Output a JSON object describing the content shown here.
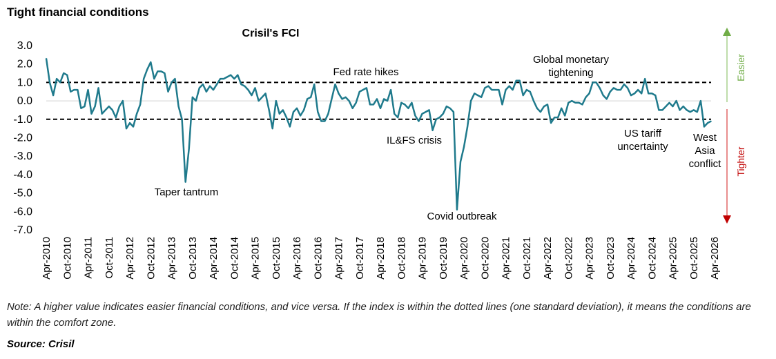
{
  "header": {
    "title": "Tight financial conditions"
  },
  "chart_data": {
    "type": "line",
    "title": "Crisil's FCI",
    "xlabel": "",
    "ylabel": "",
    "ylim": [
      -7.0,
      3.0
    ],
    "y_ticks": [
      "3.0",
      "2.0",
      "1.0",
      "0.0",
      "-1.0",
      "-2.0",
      "-3.0",
      "-4.0",
      "-5.0",
      "-6.0",
      "-7.0"
    ],
    "x_ticks": [
      "Apr-2010",
      "Oct-2010",
      "Apr-2011",
      "Oct-2011",
      "Apr-2012",
      "Oct-2012",
      "Apr-2013",
      "Oct-2013",
      "Apr-2014",
      "Oct-2014",
      "Apr-2015",
      "Oct-2015",
      "Apr-2016",
      "Oct-2016",
      "Apr-2017",
      "Oct-2017",
      "Apr-2018",
      "Oct-2018",
      "Apr-2019",
      "Oct-2019",
      "Apr-2020",
      "Oct-2020",
      "Apr-2021",
      "Oct-2021",
      "Apr-2022",
      "Oct-2022",
      "Apr-2023",
      "Oct-2023",
      "Apr-2024",
      "Oct-2024",
      "Apr-2025",
      "Oct-2025",
      "Apr-2026"
    ],
    "x_start": "Apr-2010",
    "reference_lines": [
      1.0,
      -1.0
    ],
    "series": [
      {
        "color": "#1f7a8c",
        "values": [
          2.3,
          1.0,
          0.3,
          1.2,
          1.0,
          1.5,
          1.4,
          0.5,
          0.6,
          0.6,
          -0.4,
          -0.3,
          0.6,
          -0.7,
          -0.3,
          0.7,
          -0.7,
          -0.5,
          -0.3,
          -0.5,
          -0.9,
          -0.3,
          0.0,
          -1.5,
          -1.2,
          -1.4,
          -0.7,
          -0.2,
          1.2,
          1.7,
          2.1,
          1.2,
          1.6,
          1.6,
          1.5,
          0.5,
          1.0,
          1.2,
          -0.3,
          -1.0,
          -4.4,
          -2.6,
          0.2,
          0.0,
          0.7,
          0.9,
          0.5,
          0.8,
          0.6,
          0.9,
          1.2,
          1.2,
          1.3,
          1.4,
          1.2,
          1.4,
          0.9,
          0.8,
          0.6,
          0.3,
          0.7,
          0.0,
          0.2,
          0.4,
          -0.5,
          -1.5,
          0.0,
          -0.7,
          -0.5,
          -0.9,
          -1.4,
          -0.6,
          -0.4,
          -0.8,
          -0.5,
          0.1,
          0.2,
          0.9,
          -0.6,
          -1.1,
          -1.1,
          -0.7,
          0.1,
          0.9,
          0.4,
          0.1,
          0.2,
          0.0,
          -0.4,
          -0.1,
          0.5,
          0.6,
          0.7,
          -0.2,
          -0.2,
          0.1,
          -0.4,
          0.1,
          0.0,
          0.6,
          -0.7,
          -0.9,
          -0.1,
          -0.2,
          -0.4,
          -0.1,
          -0.8,
          -1.1,
          -0.7,
          -0.6,
          -0.5,
          -1.6,
          -1.0,
          -0.9,
          -0.7,
          -0.3,
          -0.4,
          -0.6,
          -5.9,
          -3.3,
          -2.5,
          -1.4,
          0.0,
          0.4,
          0.3,
          0.2,
          0.7,
          0.8,
          0.6,
          0.6,
          0.6,
          -0.2,
          0.6,
          0.8,
          0.6,
          1.1,
          1.1,
          0.3,
          0.6,
          0.5,
          0.0,
          -0.4,
          -0.6,
          -0.3,
          -0.2,
          -1.2,
          -0.9,
          -0.9,
          -0.4,
          -0.8,
          -0.1,
          0.0,
          -0.1,
          -0.1,
          -0.2,
          0.2,
          0.4,
          1.0,
          1.0,
          0.7,
          0.3,
          0.1,
          0.5,
          0.7,
          0.6,
          0.6,
          0.9,
          0.7,
          0.3,
          0.4,
          0.6,
          0.4,
          1.2,
          0.4,
          0.4,
          0.3,
          -0.5,
          -0.5,
          -0.3,
          -0.1,
          -0.3,
          0.0,
          -0.5,
          -0.3,
          -0.5,
          -0.6,
          -0.5,
          -0.6,
          0.0,
          -1.4,
          -1.2,
          -1.1
        ]
      }
    ],
    "annotations": [
      {
        "text": "Taper tantrum"
      },
      {
        "text": "Fed rate hikes"
      },
      {
        "text": "IL&FS crisis"
      },
      {
        "text": "Covid outbreak"
      },
      {
        "text": "Global monetary"
      },
      {
        "text": "tightening"
      },
      {
        "text": "US tariff"
      },
      {
        "text": "uncertainty"
      },
      {
        "text": "West"
      },
      {
        "text": "Asia"
      },
      {
        "text": "conflict"
      }
    ],
    "side_labels": {
      "easier": {
        "text": "Easier",
        "color": "#70ad47"
      },
      "tighter": {
        "text": "Tighter",
        "color": "#c00000"
      }
    }
  },
  "footer": {
    "note": "Note: A higher value indicates easier financial conditions, and vice versa. If the index is within the dotted lines (one standard deviation), it means the conditions are within the comfort zone.",
    "source": "Source: Crisil"
  }
}
